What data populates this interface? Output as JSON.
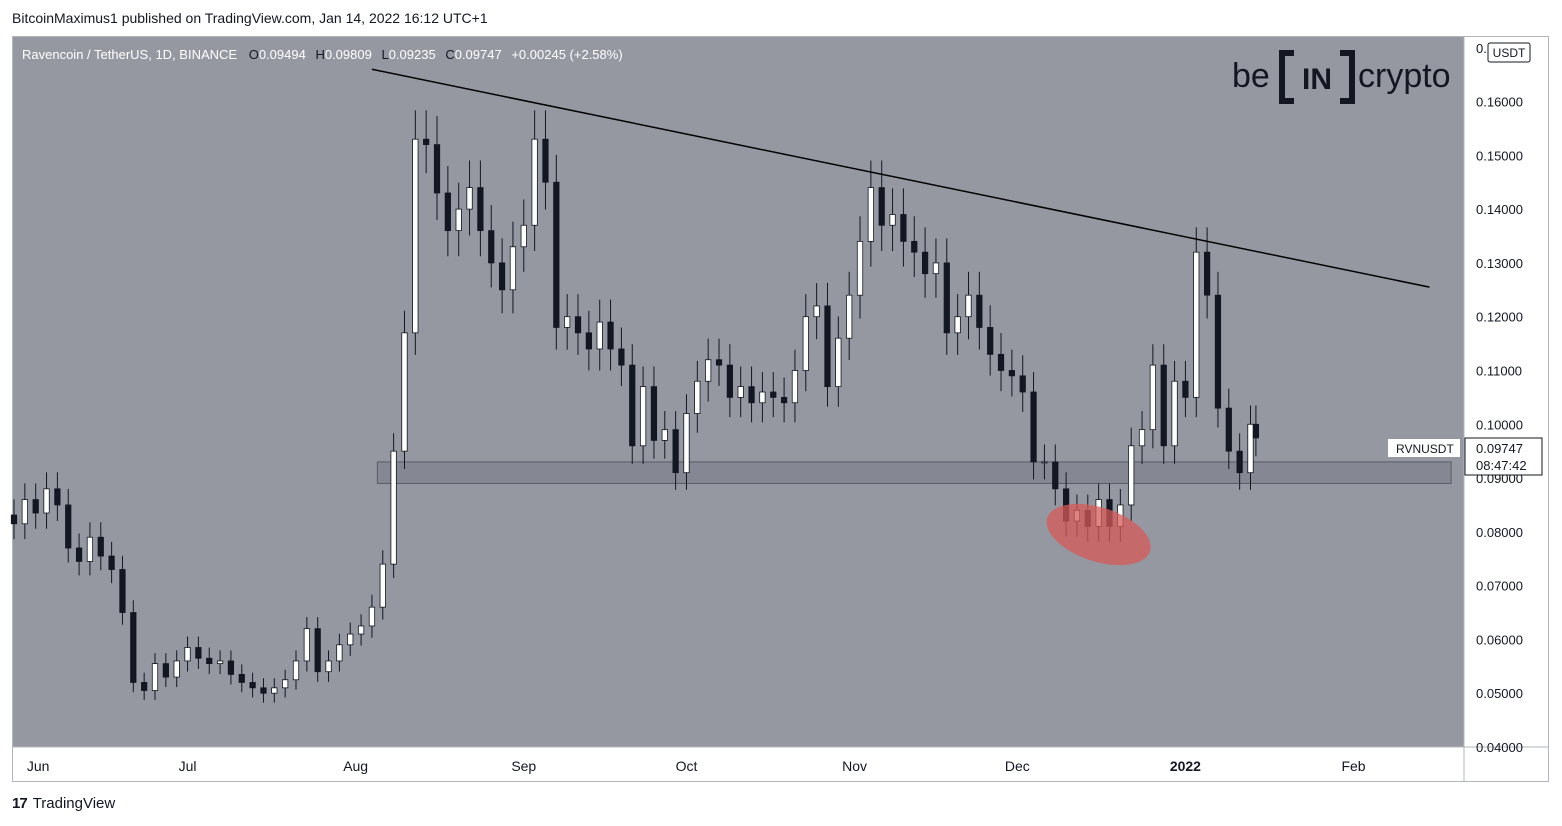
{
  "header": {
    "text": "BitcoinMaximus1 published on TradingView.com, Jan 14, 2022 16:12 UTC+1"
  },
  "legend": {
    "symbol": "Ravencoin / TetherUS, 1D, BINANCE",
    "o_label": "O",
    "o_value": "0.09494",
    "h_label": "H",
    "h_value": "0.09809",
    "l_label": "L",
    "l_value": "0.09235",
    "c_label": "C",
    "c_value": "0.09747",
    "change": "+0.00245 (+2.58%)"
  },
  "watermark": {
    "left": "be",
    "middle": "IN",
    "right": "crypto"
  },
  "price_axis": {
    "currency": "USDT",
    "ticks": [
      "0.17000",
      "0.16000",
      "0.15000",
      "0.14000",
      "0.13000",
      "0.12000",
      "0.11000",
      "0.10000",
      "0.09000",
      "0.08000",
      "0.07000",
      "0.06000",
      "0.05000",
      "0.04000"
    ]
  },
  "time_axis": {
    "labels": [
      "Jun",
      "Jul",
      "Aug",
      "Sep",
      "Oct",
      "Nov",
      "Dec",
      "2022",
      "Feb"
    ]
  },
  "price_tag": {
    "symbol": "RVNUSDT",
    "price": "0.09747",
    "countdown": "08:47:42"
  },
  "footer": {
    "logo": "17",
    "brand": "TradingView"
  },
  "colors": {
    "plot_background": "#9598a1",
    "bull_candle": "#ffffff",
    "bear_candle": "#131722",
    "wick": "#131722",
    "support_zone": "#787b86",
    "trendline": "#000000",
    "highlight": "#d75a5a"
  },
  "chart_data": {
    "type": "candlestick",
    "symbol": "Ravencoin / TetherUS",
    "interval": "1D",
    "exchange": "BINANCE",
    "ylim": [
      0.04,
      0.172
    ],
    "x_range": [
      "2021-05-30",
      "2022-02-21"
    ],
    "last_close": 0.09747,
    "trendline": {
      "from": {
        "date": "2021-08-04",
        "price": 0.166
      },
      "to": {
        "date": "2022-02-15",
        "price": 0.1255
      }
    },
    "support_zone": {
      "from_date": "2021-08-05",
      "to_date": "2022-02-19",
      "top": 0.093,
      "bottom": 0.089
    },
    "highlight": {
      "date": "2021-12-16",
      "price": 0.0795
    },
    "closes": [
      [
        "2021-05-30",
        0.0815
      ],
      [
        "2021-06-01",
        0.086
      ],
      [
        "2021-06-03",
        0.0835
      ],
      [
        "2021-06-05",
        0.088
      ],
      [
        "2021-06-07",
        0.085
      ],
      [
        "2021-06-09",
        0.077
      ],
      [
        "2021-06-11",
        0.0745
      ],
      [
        "2021-06-13",
        0.079
      ],
      [
        "2021-06-15",
        0.0755
      ],
      [
        "2021-06-17",
        0.073
      ],
      [
        "2021-06-19",
        0.065
      ],
      [
        "2021-06-21",
        0.052
      ],
      [
        "2021-06-23",
        0.0505
      ],
      [
        "2021-06-25",
        0.0555
      ],
      [
        "2021-06-27",
        0.053
      ],
      [
        "2021-06-29",
        0.056
      ],
      [
        "2021-07-01",
        0.0585
      ],
      [
        "2021-07-03",
        0.0565
      ],
      [
        "2021-07-05",
        0.0555
      ],
      [
        "2021-07-07",
        0.056
      ],
      [
        "2021-07-09",
        0.0535
      ],
      [
        "2021-07-11",
        0.052
      ],
      [
        "2021-07-13",
        0.051
      ],
      [
        "2021-07-15",
        0.05
      ],
      [
        "2021-07-17",
        0.051
      ],
      [
        "2021-07-19",
        0.0525
      ],
      [
        "2021-07-21",
        0.056
      ],
      [
        "2021-07-23",
        0.062
      ],
      [
        "2021-07-25",
        0.054
      ],
      [
        "2021-07-27",
        0.056
      ],
      [
        "2021-07-29",
        0.059
      ],
      [
        "2021-07-31",
        0.061
      ],
      [
        "2021-08-02",
        0.0625
      ],
      [
        "2021-08-04",
        0.066
      ],
      [
        "2021-08-06",
        0.074
      ],
      [
        "2021-08-08",
        0.095
      ],
      [
        "2021-08-10",
        0.117
      ],
      [
        "2021-08-12",
        0.153
      ],
      [
        "2021-08-14",
        0.152
      ],
      [
        "2021-08-16",
        0.143
      ],
      [
        "2021-08-18",
        0.136
      ],
      [
        "2021-08-20",
        0.14
      ],
      [
        "2021-08-22",
        0.144
      ],
      [
        "2021-08-24",
        0.136
      ],
      [
        "2021-08-26",
        0.13
      ],
      [
        "2021-08-28",
        0.125
      ],
      [
        "2021-08-30",
        0.133
      ],
      [
        "2021-09-01",
        0.137
      ],
      [
        "2021-09-03",
        0.153
      ],
      [
        "2021-09-05",
        0.145
      ],
      [
        "2021-09-07",
        0.118
      ],
      [
        "2021-09-09",
        0.12
      ],
      [
        "2021-09-11",
        0.117
      ],
      [
        "2021-09-13",
        0.114
      ],
      [
        "2021-09-15",
        0.119
      ],
      [
        "2021-09-17",
        0.114
      ],
      [
        "2021-09-19",
        0.111
      ],
      [
        "2021-09-21",
        0.096
      ],
      [
        "2021-09-23",
        0.107
      ],
      [
        "2021-09-25",
        0.097
      ],
      [
        "2021-09-27",
        0.099
      ],
      [
        "2021-09-29",
        0.091
      ],
      [
        "2021-10-01",
        0.102
      ],
      [
        "2021-10-03",
        0.108
      ],
      [
        "2021-10-05",
        0.112
      ],
      [
        "2021-10-07",
        0.111
      ],
      [
        "2021-10-09",
        0.105
      ],
      [
        "2021-10-11",
        0.107
      ],
      [
        "2021-10-13",
        0.104
      ],
      [
        "2021-10-15",
        0.106
      ],
      [
        "2021-10-17",
        0.105
      ],
      [
        "2021-10-19",
        0.104
      ],
      [
        "2021-10-21",
        0.11
      ],
      [
        "2021-10-23",
        0.12
      ],
      [
        "2021-10-25",
        0.122
      ],
      [
        "2021-10-27",
        0.107
      ],
      [
        "2021-10-29",
        0.116
      ],
      [
        "2021-10-31",
        0.124
      ],
      [
        "2021-11-02",
        0.134
      ],
      [
        "2021-11-04",
        0.144
      ],
      [
        "2021-11-06",
        0.137
      ],
      [
        "2021-11-08",
        0.139
      ],
      [
        "2021-11-10",
        0.134
      ],
      [
        "2021-11-12",
        0.132
      ],
      [
        "2021-11-14",
        0.128
      ],
      [
        "2021-11-16",
        0.13
      ],
      [
        "2021-11-18",
        0.117
      ],
      [
        "2021-11-20",
        0.12
      ],
      [
        "2021-11-22",
        0.124
      ],
      [
        "2021-11-24",
        0.118
      ],
      [
        "2021-11-26",
        0.113
      ],
      [
        "2021-11-28",
        0.11
      ],
      [
        "2021-11-30",
        0.109
      ],
      [
        "2021-12-02",
        0.106
      ],
      [
        "2021-12-04",
        0.093
      ],
      [
        "2021-12-06",
        0.093
      ],
      [
        "2021-12-08",
        0.088
      ],
      [
        "2021-12-10",
        0.082
      ],
      [
        "2021-12-12",
        0.084
      ],
      [
        "2021-12-14",
        0.081
      ],
      [
        "2021-12-16",
        0.086
      ],
      [
        "2021-12-18",
        0.081
      ],
      [
        "2021-12-20",
        0.085
      ],
      [
        "2021-12-22",
        0.096
      ],
      [
        "2021-12-24",
        0.099
      ],
      [
        "2021-12-26",
        0.111
      ],
      [
        "2021-12-28",
        0.096
      ],
      [
        "2021-12-30",
        0.108
      ],
      [
        "2022-01-01",
        0.105
      ],
      [
        "2022-01-03",
        0.132
      ],
      [
        "2022-01-05",
        0.124
      ],
      [
        "2022-01-07",
        0.103
      ],
      [
        "2022-01-09",
        0.095
      ],
      [
        "2022-01-11",
        0.091
      ],
      [
        "2022-01-13",
        0.1
      ],
      [
        "2022-01-14",
        0.09747
      ]
    ]
  }
}
